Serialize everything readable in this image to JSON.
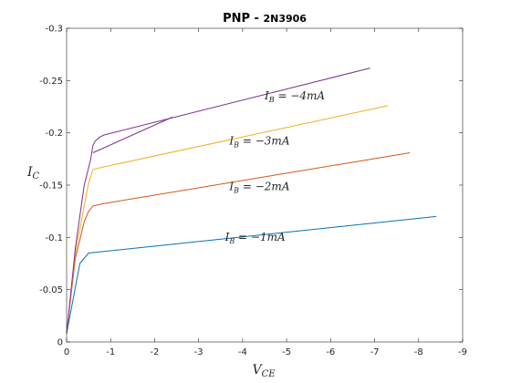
{
  "chart_data": {
    "type": "line",
    "title": {
      "main": "PNP - ",
      "suffix": "2N3906"
    },
    "xlabel": {
      "base": "V",
      "sub": "CE"
    },
    "ylabel": {
      "base": "I",
      "sub": "C"
    },
    "xlim": [
      0,
      -9
    ],
    "ylim": [
      0,
      -0.3
    ],
    "x_ticks": [
      0,
      -1,
      -2,
      -3,
      -4,
      -5,
      -6,
      -7,
      -8,
      -9
    ],
    "x_tick_labels": [
      "0",
      "-1",
      "-2",
      "-3",
      "-4",
      "-5",
      "-6",
      "-7",
      "-8",
      "-9"
    ],
    "y_ticks": [
      0,
      -0.05,
      -0.1,
      -0.15,
      -0.2,
      -0.25,
      -0.3
    ],
    "y_tick_labels": [
      "0",
      "-0.05",
      "-0.1",
      "-0.15",
      "-0.2",
      "-0.25",
      "-0.3"
    ],
    "grid": false,
    "series": [
      {
        "color": "#0072BD",
        "x": [
          0,
          -0.3,
          -0.5,
          -8.4
        ],
        "y": [
          -0.008,
          -0.075,
          -0.085,
          -0.12
        ]
      },
      {
        "color": "#D95319",
        "x": [
          0,
          -0.2,
          -0.4,
          -0.5,
          -0.6,
          -0.8,
          -7.8
        ],
        "y": [
          -0.008,
          -0.08,
          -0.115,
          -0.125,
          -0.13,
          -0.132,
          -0.181
        ]
      },
      {
        "color": "#EDB120",
        "x": [
          0,
          -0.2,
          -0.4,
          -0.5,
          -0.6,
          -0.8,
          -7.3
        ],
        "y": [
          -0.008,
          -0.085,
          -0.13,
          -0.152,
          -0.165,
          -0.167,
          -0.226
        ]
      },
      {
        "color": "#7E2F8E",
        "x": [
          0,
          -0.2,
          -0.4,
          -0.55,
          -0.6,
          -0.65,
          -0.75,
          -0.85,
          -6.9
        ],
        "y": [
          -0.008,
          -0.09,
          -0.15,
          -0.175,
          -0.188,
          -0.192,
          -0.196,
          -0.198,
          -0.262
        ]
      },
      {
        "color": "#7E2F8E",
        "x": [
          -0.6,
          -2.4
        ],
        "y": [
          -0.181,
          -0.215
        ]
      }
    ],
    "annotations": [
      {
        "base": "I",
        "sub": "B",
        "text": " = −4mA",
        "x": -4.5,
        "y": -0.232
      },
      {
        "base": "I",
        "sub": "B",
        "text": " = −3mA",
        "x": -3.7,
        "y": -0.189
      },
      {
        "base": "I",
        "sub": "B",
        "text": " = −2mA",
        "x": -3.7,
        "y": -0.145
      },
      {
        "base": "I",
        "sub": "B",
        "text": " = −1mA",
        "x": -3.6,
        "y": -0.097
      }
    ]
  }
}
